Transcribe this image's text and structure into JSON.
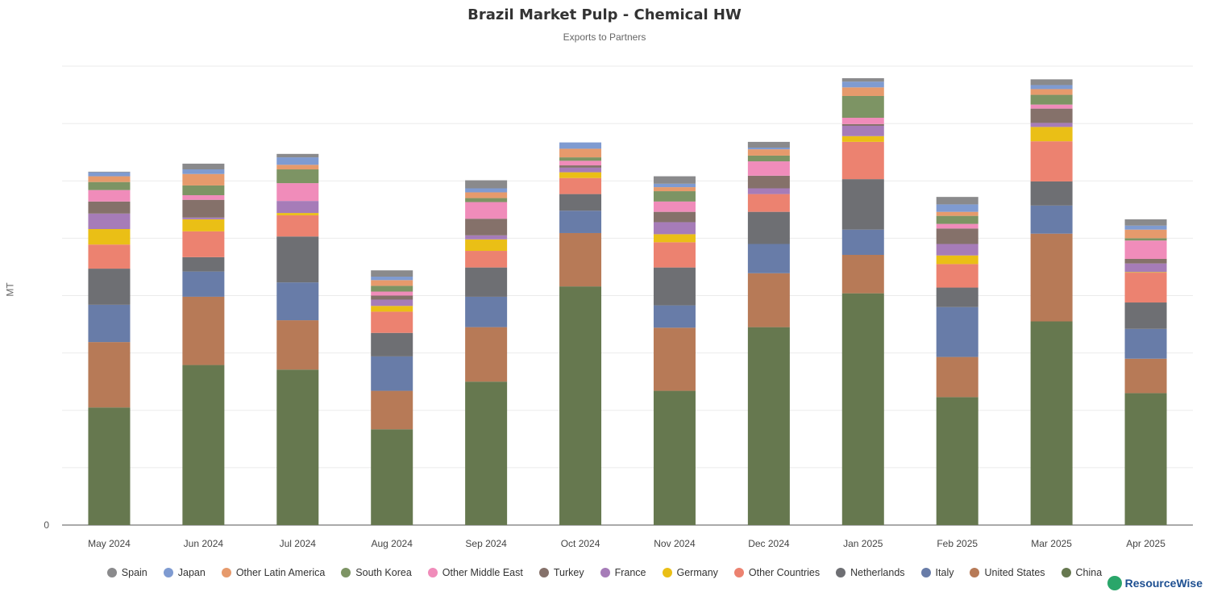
{
  "chart_data": {
    "type": "bar",
    "stacked": true,
    "title": "Brazil Market Pulp - Chemical HW",
    "subtitle": "Exports to Partners",
    "ylabel": "MT",
    "xlabel": "",
    "y_tick_labels": [
      "0"
    ],
    "ylim": [
      0,
      800
    ],
    "grid": true,
    "legend_position": "bottom",
    "categories": [
      "May 2024",
      "Jun 2024",
      "Jul 2024",
      "Aug 2024",
      "Sep 2024",
      "Oct 2024",
      "Nov 2024",
      "Dec 2024",
      "Jan 2025",
      "Feb 2025",
      "Mar 2025",
      "Apr 2025"
    ],
    "series": [
      {
        "name": "China",
        "color": "#66784f",
        "values": [
          205,
          279,
          271,
          167,
          250,
          416,
          234,
          345,
          404,
          223,
          355,
          230
        ]
      },
      {
        "name": "United States",
        "color": "#b77a57",
        "values": [
          114,
          119,
          86,
          67,
          95,
          93,
          110,
          94,
          67,
          70,
          153,
          60
        ]
      },
      {
        "name": "Italy",
        "color": "#687ca8",
        "values": [
          65,
          44,
          66,
          60,
          53,
          39,
          39,
          51,
          44,
          87,
          49,
          52
        ]
      },
      {
        "name": "Netherlands",
        "color": "#6e6f73",
        "values": [
          63,
          25,
          80,
          41,
          51,
          29,
          66,
          56,
          88,
          34,
          42,
          46
        ]
      },
      {
        "name": "Other Countries",
        "color": "#ec8270",
        "values": [
          42,
          45,
          37,
          37,
          29,
          28,
          44,
          31,
          65,
          41,
          70,
          52
        ]
      },
      {
        "name": "Germany",
        "color": "#eabf16",
        "values": [
          27,
          21,
          4,
          10,
          20,
          10,
          14,
          0,
          10,
          15,
          25,
          1
        ]
      },
      {
        "name": "France",
        "color": "#a67cb8",
        "values": [
          27,
          3,
          21,
          11,
          7,
          8,
          21,
          10,
          18,
          20,
          7,
          15
        ]
      },
      {
        "name": "Turkey",
        "color": "#85716a",
        "values": [
          21,
          31,
          0,
          7,
          29,
          4,
          18,
          22,
          3,
          27,
          25,
          8
        ]
      },
      {
        "name": "Other Middle East",
        "color": "#f08cba",
        "values": [
          20,
          8,
          31,
          7,
          29,
          8,
          18,
          25,
          11,
          8,
          7,
          32
        ]
      },
      {
        "name": "South Korea",
        "color": "#7d9464",
        "values": [
          14,
          17,
          24,
          10,
          7,
          6,
          18,
          10,
          38,
          14,
          17,
          4
        ]
      },
      {
        "name": "Other Latin America",
        "color": "#e69a6c",
        "values": [
          10,
          20,
          8,
          10,
          10,
          15,
          7,
          11,
          15,
          7,
          10,
          15
        ]
      },
      {
        "name": "Japan",
        "color": "#7f9bd1",
        "values": [
          7,
          8,
          13,
          6,
          7,
          11,
          6,
          3,
          10,
          13,
          7,
          7
        ]
      },
      {
        "name": "Spain",
        "color": "#8a8a8c",
        "values": [
          1,
          10,
          6,
          11,
          14,
          0,
          13,
          10,
          6,
          13,
          10,
          11
        ]
      }
    ],
    "legend_order": [
      "Spain",
      "Japan",
      "Other Latin America",
      "South Korea",
      "Other Middle East",
      "Turkey",
      "France",
      "Germany",
      "Other Countries",
      "Netherlands",
      "Italy",
      "United States",
      "China"
    ]
  },
  "logo": {
    "text": "ResourceWise"
  }
}
